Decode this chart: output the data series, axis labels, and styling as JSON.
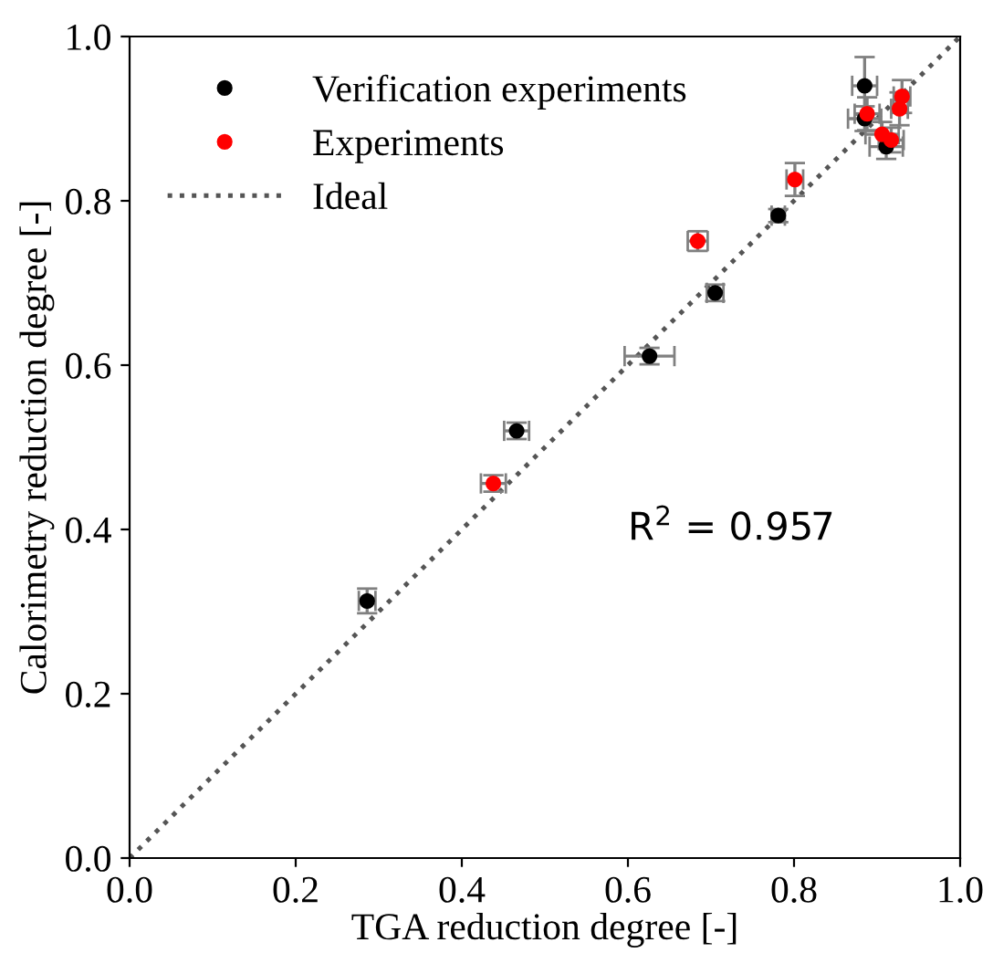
{
  "chart_data": {
    "type": "scatter",
    "xlabel": "TGA reduction degree [-]",
    "ylabel": "Calorimetry reduction degree [-]",
    "xlim": [
      0.0,
      1.0
    ],
    "ylim": [
      0.0,
      1.0
    ],
    "xticks": [
      {
        "value": 0,
        "label": "0.0"
      },
      0.2,
      0.4,
      0.6,
      0.8,
      {
        "value": 1,
        "label": "1.0"
      }
    ],
    "yticks": [
      {
        "value": 0,
        "label": "0.0"
      },
      0.2,
      0.4,
      0.6,
      0.8,
      {
        "value": 1,
        "label": "1.0"
      }
    ],
    "grid": false,
    "legend": "top left",
    "marker": "circle",
    "annotations": [
      "R$^{2}$ = 0.957"
    ],
    "series": [
      {
        "name": "Verification experiments",
        "color": "#000000",
        "x": [
          0.286,
          0.466,
          0.626,
          0.705,
          0.781,
          0.885,
          0.885,
          0.911
        ],
        "values": [
          0.313,
          0.52,
          0.611,
          0.688,
          0.782,
          0.94,
          0.9,
          0.866
        ],
        "xerrors": [
          0.01,
          0.015,
          0.03,
          0.01,
          0.008,
          0.015,
          0.02,
          0.02
        ],
        "errors": [
          0.015,
          0.01,
          0.01,
          0.01,
          0.008,
          0.035,
          0.015,
          0.015
        ]
      },
      {
        "name": "Experiments",
        "color": "#ff0000",
        "x": [
          0.438,
          0.684,
          0.801,
          0.888,
          0.906,
          0.917,
          0.927,
          0.93
        ],
        "values": [
          0.456,
          0.751,
          0.826,
          0.906,
          0.881,
          0.874,
          0.912,
          0.927
        ],
        "xerrors": [
          0.015,
          0.012,
          0.01,
          0.015,
          0.02,
          0.015,
          0.01,
          0.01
        ],
        "errors": [
          0.01,
          0.012,
          0.02,
          0.02,
          0.015,
          0.015,
          0.02,
          0.02
        ]
      },
      {
        "name": "Ideal",
        "type": "line",
        "color": "#555555",
        "line_style": "dotted",
        "marker": "none",
        "x": [
          0.0,
          1.0
        ],
        "values": [
          0.0,
          1.0
        ]
      }
    ]
  }
}
